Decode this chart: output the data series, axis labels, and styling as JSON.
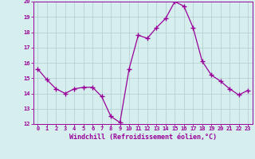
{
  "x": [
    0,
    1,
    2,
    3,
    4,
    5,
    6,
    7,
    8,
    9,
    10,
    11,
    12,
    13,
    14,
    15,
    16,
    17,
    18,
    19,
    20,
    21,
    22,
    23
  ],
  "y": [
    15.6,
    14.9,
    14.3,
    14.0,
    14.3,
    14.4,
    14.4,
    13.8,
    12.5,
    12.1,
    15.6,
    17.8,
    17.6,
    18.3,
    18.9,
    20.0,
    19.7,
    18.3,
    16.1,
    15.2,
    14.8,
    14.3,
    13.9,
    14.2
  ],
  "ylim": [
    12,
    20
  ],
  "yticks": [
    12,
    13,
    14,
    15,
    16,
    17,
    18,
    19,
    20
  ],
  "xticks": [
    0,
    1,
    2,
    3,
    4,
    5,
    6,
    7,
    8,
    9,
    10,
    11,
    12,
    13,
    14,
    15,
    16,
    17,
    18,
    19,
    20,
    21,
    22,
    23
  ],
  "line_color": "#990099",
  "marker": "+",
  "marker_size": 4,
  "marker_linewidth": 1.0,
  "line_width": 0.9,
  "bg_color": "#d6eeee",
  "grid_color": "#b0cccc",
  "xlabel": "Windchill (Refroidissement éolien,°C)",
  "xlabel_color": "#990099",
  "tick_color": "#990099",
  "tick_fontsize": 5.0,
  "xlabel_fontsize": 6.0
}
